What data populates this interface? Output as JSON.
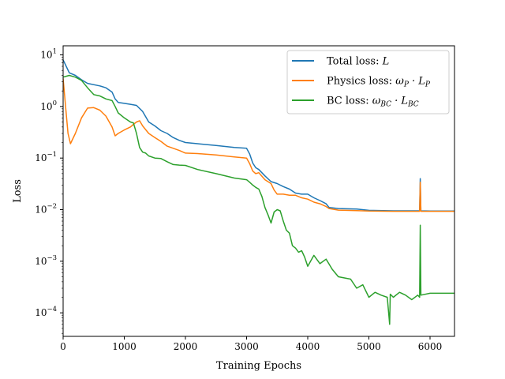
{
  "chart_data": {
    "type": "line",
    "title": "",
    "xlabel": "Training Epochs",
    "ylabel": "Loss",
    "xscale": "linear",
    "yscale": "log",
    "xlim": [
      0,
      6400
    ],
    "ylim": [
      3.5e-05,
      15
    ],
    "grid": false,
    "legend_position": "top-right",
    "x_ticks": [
      "0",
      "1000",
      "2000",
      "3000",
      "4000",
      "5000",
      "6000"
    ],
    "y_ticks": [
      {
        "base": "10",
        "exp": "1"
      },
      {
        "base": "10",
        "exp": "0"
      },
      {
        "base": "10",
        "exp": "−1"
      },
      {
        "base": "10",
        "exp": "−2"
      },
      {
        "base": "10",
        "exp": "−3"
      },
      {
        "base": "10",
        "exp": "−4"
      }
    ],
    "series": [
      {
        "name": "Total loss: L",
        "legend": {
          "text": "Total loss: ",
          "math": "L",
          "sub": "",
          "math2": "",
          "sub2": ""
        },
        "color": "#1f77b4",
        "points": [
          [
            0,
            8
          ],
          [
            50,
            6
          ],
          [
            100,
            4.5
          ],
          [
            200,
            4.0
          ],
          [
            300,
            3.3
          ],
          [
            400,
            2.8
          ],
          [
            600,
            2.5
          ],
          [
            700,
            2.3
          ],
          [
            800,
            1.9
          ],
          [
            850,
            1.4
          ],
          [
            900,
            1.2
          ],
          [
            1000,
            1.15
          ],
          [
            1100,
            1.1
          ],
          [
            1200,
            1.05
          ],
          [
            1300,
            0.8
          ],
          [
            1400,
            0.5
          ],
          [
            1500,
            0.42
          ],
          [
            1600,
            0.34
          ],
          [
            1700,
            0.3
          ],
          [
            1800,
            0.25
          ],
          [
            1900,
            0.22
          ],
          [
            2000,
            0.2
          ],
          [
            2200,
            0.19
          ],
          [
            2500,
            0.175
          ],
          [
            2800,
            0.16
          ],
          [
            3000,
            0.155
          ],
          [
            3050,
            0.12
          ],
          [
            3100,
            0.08
          ],
          [
            3150,
            0.065
          ],
          [
            3200,
            0.06
          ],
          [
            3300,
            0.045
          ],
          [
            3400,
            0.035
          ],
          [
            3500,
            0.032
          ],
          [
            3600,
            0.028
          ],
          [
            3700,
            0.025
          ],
          [
            3800,
            0.021
          ],
          [
            3900,
            0.02
          ],
          [
            4000,
            0.02
          ],
          [
            4100,
            0.017
          ],
          [
            4200,
            0.015
          ],
          [
            4300,
            0.013
          ],
          [
            4350,
            0.011
          ],
          [
            4500,
            0.0105
          ],
          [
            4800,
            0.0103
          ],
          [
            5000,
            0.0097
          ],
          [
            5400,
            0.0095
          ],
          [
            5830,
            0.0095
          ],
          [
            5840,
            0.04
          ],
          [
            5850,
            0.0095
          ],
          [
            6000,
            0.0094
          ],
          [
            6400,
            0.0094
          ]
        ]
      },
      {
        "name": "Physics loss: ωP · LP",
        "legend": {
          "text": "Physics loss: ",
          "math": "ω",
          "sub": "P",
          "math2": " · L",
          "sub2": "P"
        },
        "color": "#ff7f0e",
        "points": [
          [
            0,
            3.5
          ],
          [
            40,
            1.0
          ],
          [
            80,
            0.3
          ],
          [
            120,
            0.19
          ],
          [
            200,
            0.3
          ],
          [
            300,
            0.6
          ],
          [
            400,
            0.93
          ],
          [
            500,
            0.95
          ],
          [
            600,
            0.85
          ],
          [
            700,
            0.65
          ],
          [
            800,
            0.4
          ],
          [
            850,
            0.27
          ],
          [
            900,
            0.3
          ],
          [
            1000,
            0.35
          ],
          [
            1100,
            0.4
          ],
          [
            1150,
            0.45
          ],
          [
            1200,
            0.5
          ],
          [
            1250,
            0.53
          ],
          [
            1300,
            0.42
          ],
          [
            1400,
            0.3
          ],
          [
            1500,
            0.25
          ],
          [
            1600,
            0.21
          ],
          [
            1700,
            0.17
          ],
          [
            1800,
            0.155
          ],
          [
            1900,
            0.14
          ],
          [
            2000,
            0.125
          ],
          [
            2200,
            0.122
          ],
          [
            2500,
            0.115
          ],
          [
            2800,
            0.105
          ],
          [
            3000,
            0.1
          ],
          [
            3050,
            0.078
          ],
          [
            3100,
            0.056
          ],
          [
            3150,
            0.05
          ],
          [
            3200,
            0.052
          ],
          [
            3300,
            0.038
          ],
          [
            3400,
            0.032
          ],
          [
            3450,
            0.024
          ],
          [
            3500,
            0.02
          ],
          [
            3600,
            0.02
          ],
          [
            3700,
            0.019
          ],
          [
            3800,
            0.019
          ],
          [
            3900,
            0.017
          ],
          [
            4000,
            0.016
          ],
          [
            4100,
            0.014
          ],
          [
            4200,
            0.013
          ],
          [
            4300,
            0.0115
          ],
          [
            4350,
            0.0105
          ],
          [
            4500,
            0.0098
          ],
          [
            4800,
            0.0096
          ],
          [
            5000,
            0.0094
          ],
          [
            5400,
            0.0093
          ],
          [
            5830,
            0.0093
          ],
          [
            5840,
            0.034
          ],
          [
            5850,
            0.0093
          ],
          [
            6000,
            0.0093
          ],
          [
            6400,
            0.0093
          ]
        ]
      },
      {
        "name": "BC loss: ωBC · LBC",
        "legend": {
          "text": "BC loss: ",
          "math": "ω",
          "sub": "BC",
          "math2": " · L",
          "sub2": "BC"
        },
        "color": "#2ca02c",
        "points": [
          [
            0,
            3.7
          ],
          [
            100,
            4.0
          ],
          [
            200,
            3.7
          ],
          [
            300,
            3.2
          ],
          [
            400,
            2.3
          ],
          [
            500,
            1.7
          ],
          [
            600,
            1.6
          ],
          [
            700,
            1.4
          ],
          [
            800,
            1.3
          ],
          [
            850,
            1.0
          ],
          [
            900,
            0.75
          ],
          [
            1000,
            0.6
          ],
          [
            1100,
            0.5
          ],
          [
            1150,
            0.48
          ],
          [
            1200,
            0.3
          ],
          [
            1250,
            0.16
          ],
          [
            1300,
            0.13
          ],
          [
            1350,
            0.125
          ],
          [
            1400,
            0.11
          ],
          [
            1500,
            0.1
          ],
          [
            1600,
            0.098
          ],
          [
            1700,
            0.085
          ],
          [
            1800,
            0.075
          ],
          [
            1900,
            0.073
          ],
          [
            2000,
            0.072
          ],
          [
            2200,
            0.06
          ],
          [
            2500,
            0.05
          ],
          [
            2800,
            0.041
          ],
          [
            3000,
            0.038
          ],
          [
            3050,
            0.034
          ],
          [
            3100,
            0.03
          ],
          [
            3150,
            0.027
          ],
          [
            3200,
            0.025
          ],
          [
            3250,
            0.018
          ],
          [
            3300,
            0.011
          ],
          [
            3350,
            0.008
          ],
          [
            3400,
            0.0055
          ],
          [
            3450,
            0.009
          ],
          [
            3500,
            0.01
          ],
          [
            3550,
            0.0095
          ],
          [
            3600,
            0.006
          ],
          [
            3650,
            0.004
          ],
          [
            3700,
            0.0035
          ],
          [
            3750,
            0.002
          ],
          [
            3800,
            0.0018
          ],
          [
            3850,
            0.0015
          ],
          [
            3900,
            0.0016
          ],
          [
            3950,
            0.0012
          ],
          [
            4000,
            0.0008
          ],
          [
            4100,
            0.0013
          ],
          [
            4200,
            0.0009
          ],
          [
            4300,
            0.0011
          ],
          [
            4400,
            0.0007
          ],
          [
            4500,
            0.0005
          ],
          [
            4700,
            0.00045
          ],
          [
            4800,
            0.0003
          ],
          [
            4900,
            0.00035
          ],
          [
            5000,
            0.0002
          ],
          [
            5100,
            0.00025
          ],
          [
            5200,
            0.00022
          ],
          [
            5300,
            0.0002
          ],
          [
            5330,
            8e-05
          ],
          [
            5340,
            6e-05
          ],
          [
            5350,
            0.00023
          ],
          [
            5400,
            0.0002
          ],
          [
            5500,
            0.00025
          ],
          [
            5600,
            0.00022
          ],
          [
            5700,
            0.00018
          ],
          [
            5800,
            0.00022
          ],
          [
            5830,
            0.0002
          ],
          [
            5840,
            0.005
          ],
          [
            5850,
            0.00022
          ],
          [
            6000,
            0.00024
          ],
          [
            6400,
            0.00024
          ]
        ]
      }
    ]
  }
}
